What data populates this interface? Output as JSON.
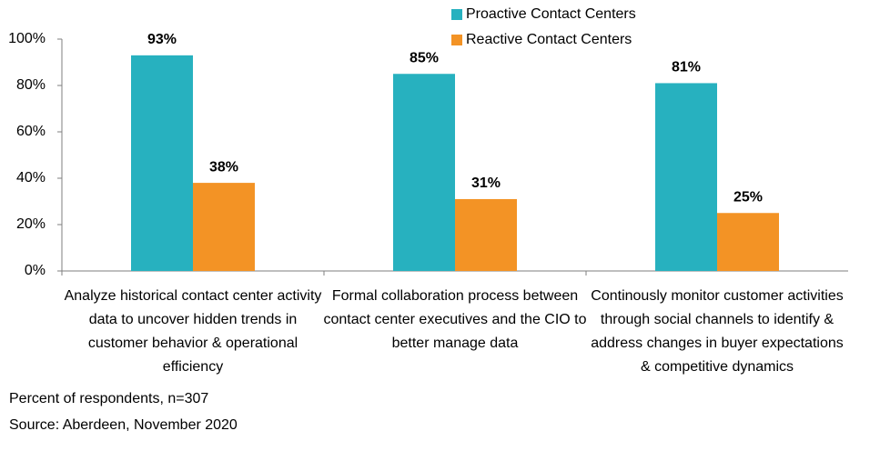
{
  "chart_data": {
    "type": "bar",
    "categories": [
      "Analyze historical contact center activity data to uncover hidden trends in customer behavior & operational efficiency",
      "Formal collaboration process between contact center executives and the CIO to better manage data",
      "Continously monitor customer activities through social channels to identify & address changes in buyer expectations & competitive dynamics"
    ],
    "series": [
      {
        "name": "Proactive Contact Centers",
        "color": "#27b1bf",
        "values": [
          93,
          85,
          81
        ],
        "value_labels": [
          "93%",
          "85%",
          "81%"
        ]
      },
      {
        "name": "Reactive Contact Centers",
        "color": "#f39325",
        "values": [
          38,
          31,
          25
        ],
        "value_labels": [
          "38%",
          "31%",
          "25%"
        ]
      }
    ],
    "ylim": [
      0,
      100
    ],
    "yticks": [
      {
        "value": 0,
        "label": "0%"
      },
      {
        "value": 20,
        "label": "20%"
      },
      {
        "value": 40,
        "label": "40%"
      },
      {
        "value": 60,
        "label": "60%"
      },
      {
        "value": 80,
        "label": "80%"
      },
      {
        "value": 100,
        "label": "100%"
      }
    ],
    "grid": false,
    "legend": "top",
    "notes": [
      "Percent of respondents, n=307",
      "Source: Aberdeen, November 2020"
    ]
  }
}
